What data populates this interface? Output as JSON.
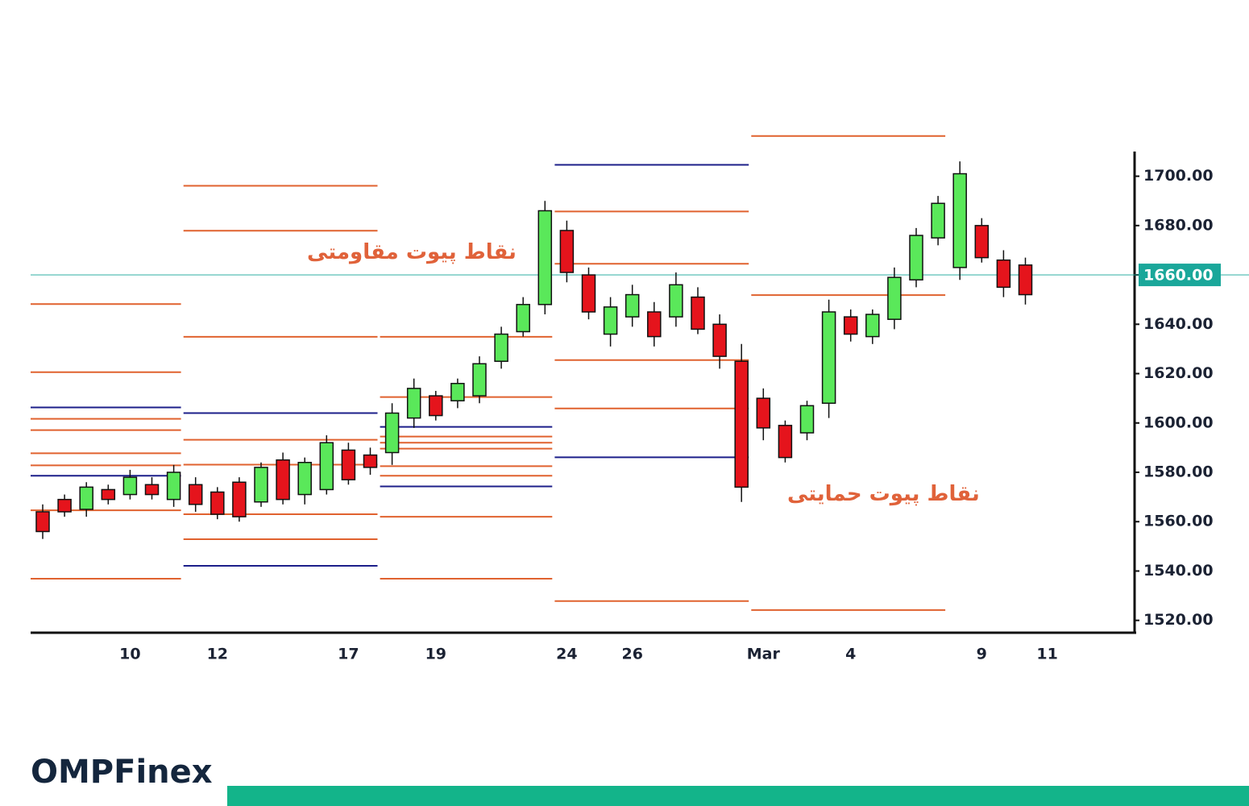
{
  "brand": "OMPFinex",
  "chart_data": {
    "type": "candlestick",
    "categories": [
      null,
      null,
      null,
      null,
      "10",
      null,
      null,
      null,
      "12",
      null,
      null,
      null,
      null,
      null,
      "17",
      null,
      null,
      null,
      "19",
      null,
      null,
      null,
      null,
      null,
      "24",
      null,
      null,
      "26",
      null,
      null,
      null,
      null,
      null,
      "Mar",
      null,
      null,
      null,
      "4",
      null,
      null,
      null,
      null,
      null,
      "9",
      null,
      null,
      "11"
    ],
    "open": [
      1564,
      1569,
      1565,
      1573,
      1571,
      1575,
      1569,
      1575,
      1572,
      1576,
      1568,
      1585,
      1571,
      1573,
      1589,
      1587,
      1588,
      1602,
      1611,
      1609,
      1611,
      1625,
      1637,
      1648,
      1678,
      1660,
      1636,
      1643,
      1645,
      1643,
      1651,
      1640,
      1625,
      1610,
      1599,
      1596,
      1608,
      1643,
      1635,
      1642,
      1658,
      1675,
      1663,
      1680,
      1666,
      1664,
      null
    ],
    "high": [
      1567,
      1571,
      1576,
      1575,
      1581,
      1578,
      1583,
      1578,
      1574,
      1578,
      1584,
      1588,
      1586,
      1595,
      1592,
      1590,
      1608,
      1618,
      1613,
      1618,
      1627,
      1639,
      1651,
      1690,
      1682,
      1663,
      1651,
      1656,
      1649,
      1661,
      1655,
      1644,
      1632,
      1614,
      1601,
      1609,
      1650,
      1646,
      1646,
      1663,
      1679,
      1692,
      1706,
      1683,
      1670,
      1667,
      null
    ],
    "low": [
      1553,
      1562,
      1562,
      1567,
      1569,
      1569,
      1566,
      1564,
      1561,
      1560,
      1566,
      1567,
      1567,
      1571,
      1575,
      1579,
      1583,
      1598,
      1601,
      1606,
      1608,
      1622,
      1635,
      1644,
      1657,
      1642,
      1631,
      1639,
      1631,
      1639,
      1636,
      1622,
      1568,
      1593,
      1584,
      1593,
      1602,
      1633,
      1632,
      1638,
      1655,
      1672,
      1658,
      1665,
      1651,
      1648,
      null
    ],
    "close": [
      1556,
      1564,
      1574,
      1569,
      1578,
      1571,
      1580,
      1567,
      1563,
      1562,
      1582,
      1569,
      1584,
      1592,
      1577,
      1582,
      1604,
      1614,
      1603,
      1616,
      1624,
      1636,
      1648,
      1686,
      1661,
      1645,
      1647,
      1652,
      1635,
      1656,
      1638,
      1627,
      1574,
      1598,
      1586,
      1607,
      1645,
      1636,
      1644,
      1659,
      1676,
      1689,
      1701,
      1667,
      1655,
      1652,
      null
    ],
    "up_color": "#5ae85a",
    "down_color": "#e5141c",
    "ylim": [
      1515,
      1710
    ],
    "yticks": [
      {
        "value": 1520,
        "label": "1520.00"
      },
      {
        "value": 1540,
        "label": "1540.00"
      },
      {
        "value": 1560,
        "label": "1560.00"
      },
      {
        "value": 1580,
        "label": "1580.00"
      },
      {
        "value": 1600,
        "label": "1600.00"
      },
      {
        "value": 1620,
        "label": "1620.00"
      },
      {
        "value": 1640,
        "label": "1640.00"
      },
      {
        "value": 1660,
        "label": "1660.00"
      },
      {
        "value": 1680,
        "label": "1680.00"
      },
      {
        "value": 1700,
        "label": "1700.00"
      }
    ],
    "current_price": {
      "value": 1660,
      "label": "1660.00",
      "color": "#1aa79a"
    },
    "pivot_periods": [
      {
        "first": 0,
        "last": 6,
        "levels": [
          {
            "value": 1648.2,
            "color": "#e0622f"
          },
          {
            "value": 1620.6,
            "color": "#e0622f"
          },
          {
            "value": 1606.3,
            "color": "#1c1f8a"
          },
          {
            "value": 1601.7,
            "color": "#e0622f"
          },
          {
            "value": 1597.1,
            "color": "#e0622f"
          },
          {
            "value": 1587.7,
            "color": "#e0622f"
          },
          {
            "value": 1582.8,
            "color": "#e0622f"
          },
          {
            "value": 1578.6,
            "color": "#1c1f8a"
          },
          {
            "value": 1564.6,
            "color": "#e0622f"
          },
          {
            "value": 1536.9,
            "color": "#e0622f"
          }
        ]
      },
      {
        "first": 7,
        "last": 15,
        "levels": [
          {
            "value": 1696.1,
            "color": "#e0622f"
          },
          {
            "value": 1677.9,
            "color": "#e0622f"
          },
          {
            "value": 1634.9,
            "color": "#e0622f"
          },
          {
            "value": 1604.0,
            "color": "#1c1f8a"
          },
          {
            "value": 1593.2,
            "color": "#e0622f"
          },
          {
            "value": 1583.1,
            "color": "#e0622f"
          },
          {
            "value": 1563.0,
            "color": "#e0622f"
          },
          {
            "value": 1552.9,
            "color": "#e0622f"
          },
          {
            "value": 1542.1,
            "color": "#1c1f8a"
          }
        ]
      },
      {
        "first": 16,
        "last": 23,
        "levels": [
          {
            "value": 1634.9,
            "color": "#e0622f"
          },
          {
            "value": 1610.5,
            "color": "#e0622f"
          },
          {
            "value": 1598.4,
            "color": "#1c1f8a"
          },
          {
            "value": 1594.5,
            "color": "#e0622f"
          },
          {
            "value": 1592.0,
            "color": "#e0622f"
          },
          {
            "value": 1589.6,
            "color": "#e0622f"
          },
          {
            "value": 1582.5,
            "color": "#e0622f"
          },
          {
            "value": 1578.6,
            "color": "#e0622f"
          },
          {
            "value": 1574.3,
            "color": "#1c1f8a"
          },
          {
            "value": 1562.0,
            "color": "#e0622f"
          },
          {
            "value": 1536.9,
            "color": "#e0622f"
          }
        ]
      },
      {
        "first": 24,
        "last": 32,
        "levels": [
          {
            "value": 1704.6,
            "color": "#1c1f8a"
          },
          {
            "value": 1685.7,
            "color": "#e0622f"
          },
          {
            "value": 1664.5,
            "color": "#e0622f"
          },
          {
            "value": 1625.5,
            "color": "#e0622f"
          },
          {
            "value": 1605.9,
            "color": "#e0622f"
          },
          {
            "value": 1586.1,
            "color": "#1c1f8a"
          },
          {
            "value": 1527.8,
            "color": "#e0622f"
          }
        ]
      },
      {
        "first": 33,
        "last": 41,
        "levels": [
          {
            "value": 1716.3,
            "color": "#e0622f"
          },
          {
            "value": 1651.8,
            "color": "#e0622f"
          },
          {
            "value": 1524.2,
            "color": "#e0622f"
          }
        ]
      }
    ],
    "annotations": [
      {
        "text": "نقاط پیوت مقاومتی",
        "index": 16.9,
        "value": 1669
      },
      {
        "text": "نقاط پیوت حمایتی",
        "index": 38.5,
        "value": 1571
      }
    ]
  }
}
